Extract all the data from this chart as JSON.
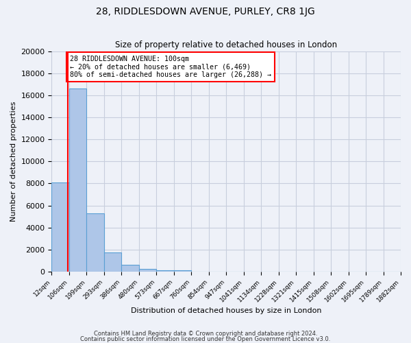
{
  "title": "28, RIDDLESDOWN AVENUE, PURLEY, CR8 1JG",
  "subtitle": "Size of property relative to detached houses in London",
  "xlabel": "Distribution of detached houses by size in London",
  "ylabel": "Number of detached properties",
  "bar_values": [
    8100,
    16600,
    5300,
    1750,
    650,
    250,
    150,
    100,
    0,
    0,
    0,
    0,
    0,
    0,
    0,
    0,
    0,
    0,
    0,
    0
  ],
  "bin_labels": [
    "12sqm",
    "106sqm",
    "199sqm",
    "293sqm",
    "386sqm",
    "480sqm",
    "573sqm",
    "667sqm",
    "760sqm",
    "854sqm",
    "947sqm",
    "1041sqm",
    "1134sqm",
    "1228sqm",
    "1321sqm",
    "1415sqm",
    "1508sqm",
    "1602sqm",
    "1695sqm",
    "1789sqm",
    "1882sqm"
  ],
  "bar_color": "#aec6e8",
  "bar_edge_color": "#5a9fd4",
  "property_line_x": 100,
  "property_line_color": "red",
  "annotation_title": "28 RIDDLESDOWN AVENUE: 100sqm",
  "annotation_line1": "← 20% of detached houses are smaller (6,469)",
  "annotation_line2": "80% of semi-detached houses are larger (26,288) →",
  "annotation_box_color": "white",
  "annotation_box_edge": "red",
  "ylim": [
    0,
    20000
  ],
  "yticks": [
    0,
    2000,
    4000,
    6000,
    8000,
    10000,
    12000,
    14000,
    16000,
    18000,
    20000
  ],
  "bin_edges": [
    12,
    106,
    199,
    293,
    386,
    480,
    573,
    667,
    760,
    854,
    947,
    1041,
    1134,
    1228,
    1321,
    1415,
    1508,
    1602,
    1695,
    1789,
    1882
  ],
  "footnote1": "Contains HM Land Registry data © Crown copyright and database right 2024.",
  "footnote2": "Contains public sector information licensed under the Open Government Licence v3.0.",
  "background_color": "#eef1f8",
  "grid_color": "#c8cedd"
}
